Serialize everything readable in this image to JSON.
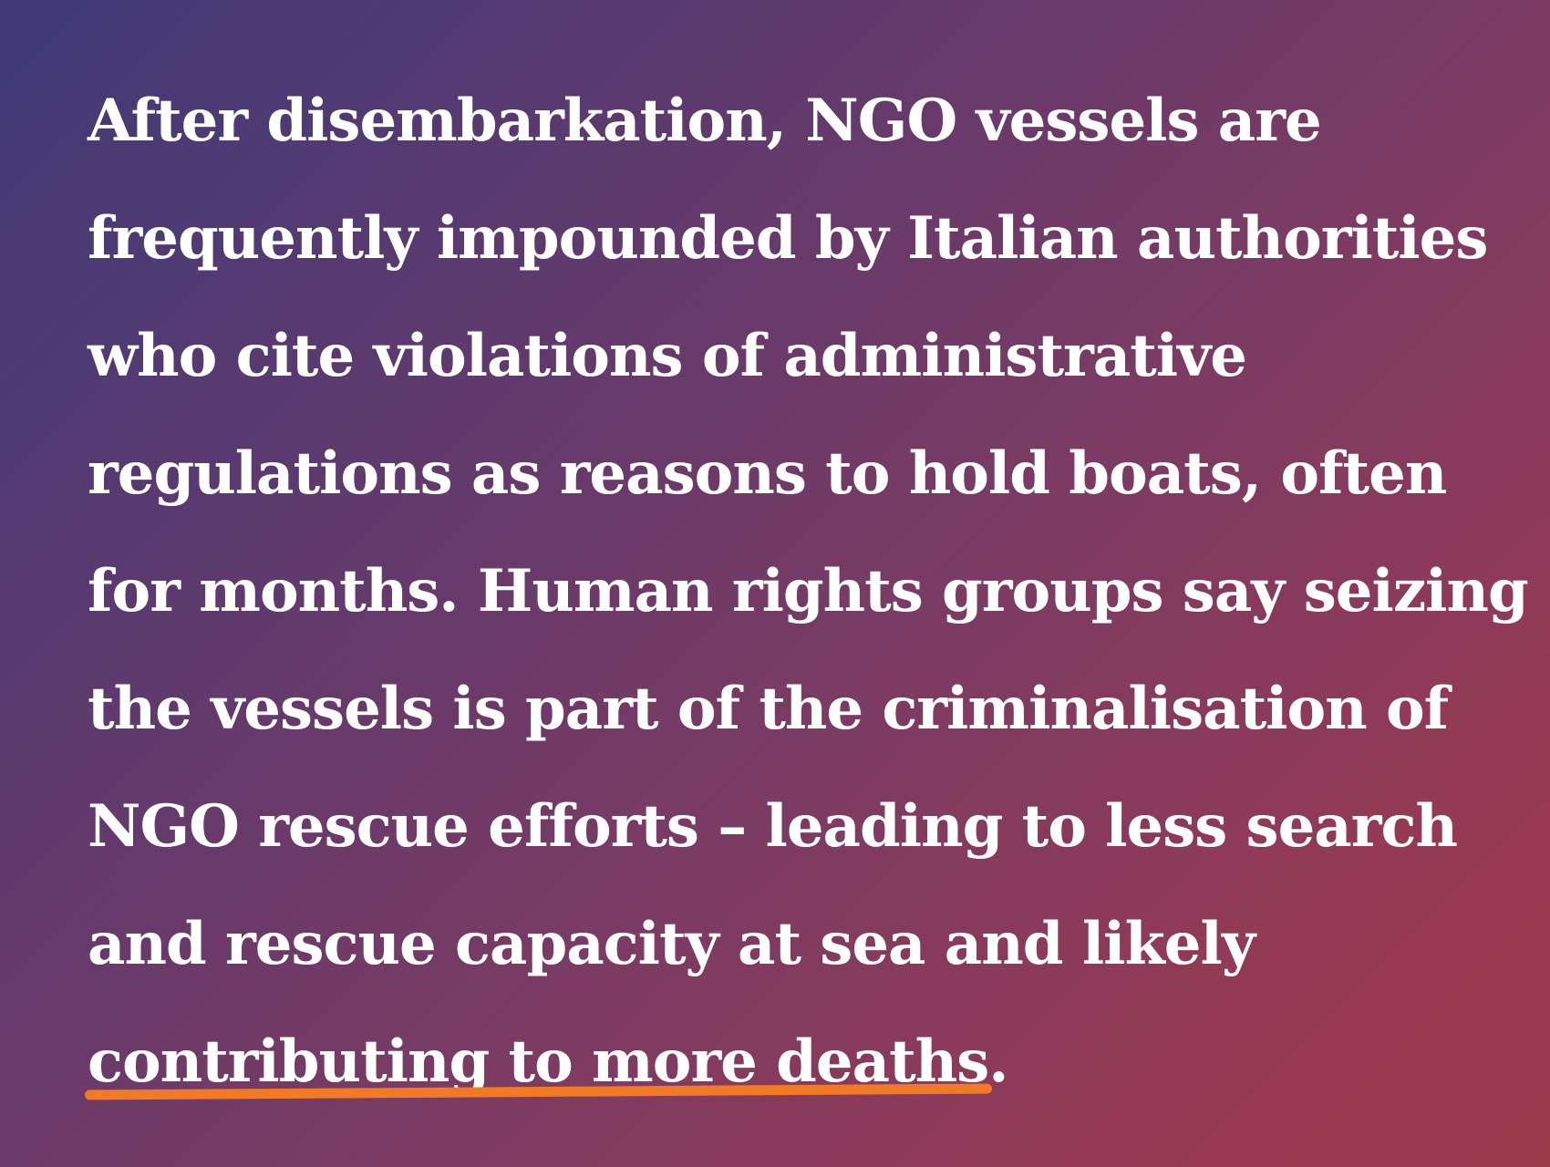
{
  "quote": {
    "lines": [
      "After disembarkation, NGO vessels are",
      "frequently impounded by Italian authorities",
      "who cite violations of administrative",
      "regulations as reasons to hold boats, often",
      "for months. Human rights groups say seizing",
      "the vessels is part of the criminalisation of",
      "NGO rescue efforts – leading to less search",
      "and rescue capacity at sea and likely"
    ],
    "final_line": {
      "underlined_text": "contributing to more deaths",
      "trailing_text": "."
    }
  },
  "colors": {
    "background_start": "#3f3a78",
    "background_end": "#9c3a4c",
    "text": "#ffffff",
    "underline_accent": "#f07a26"
  }
}
